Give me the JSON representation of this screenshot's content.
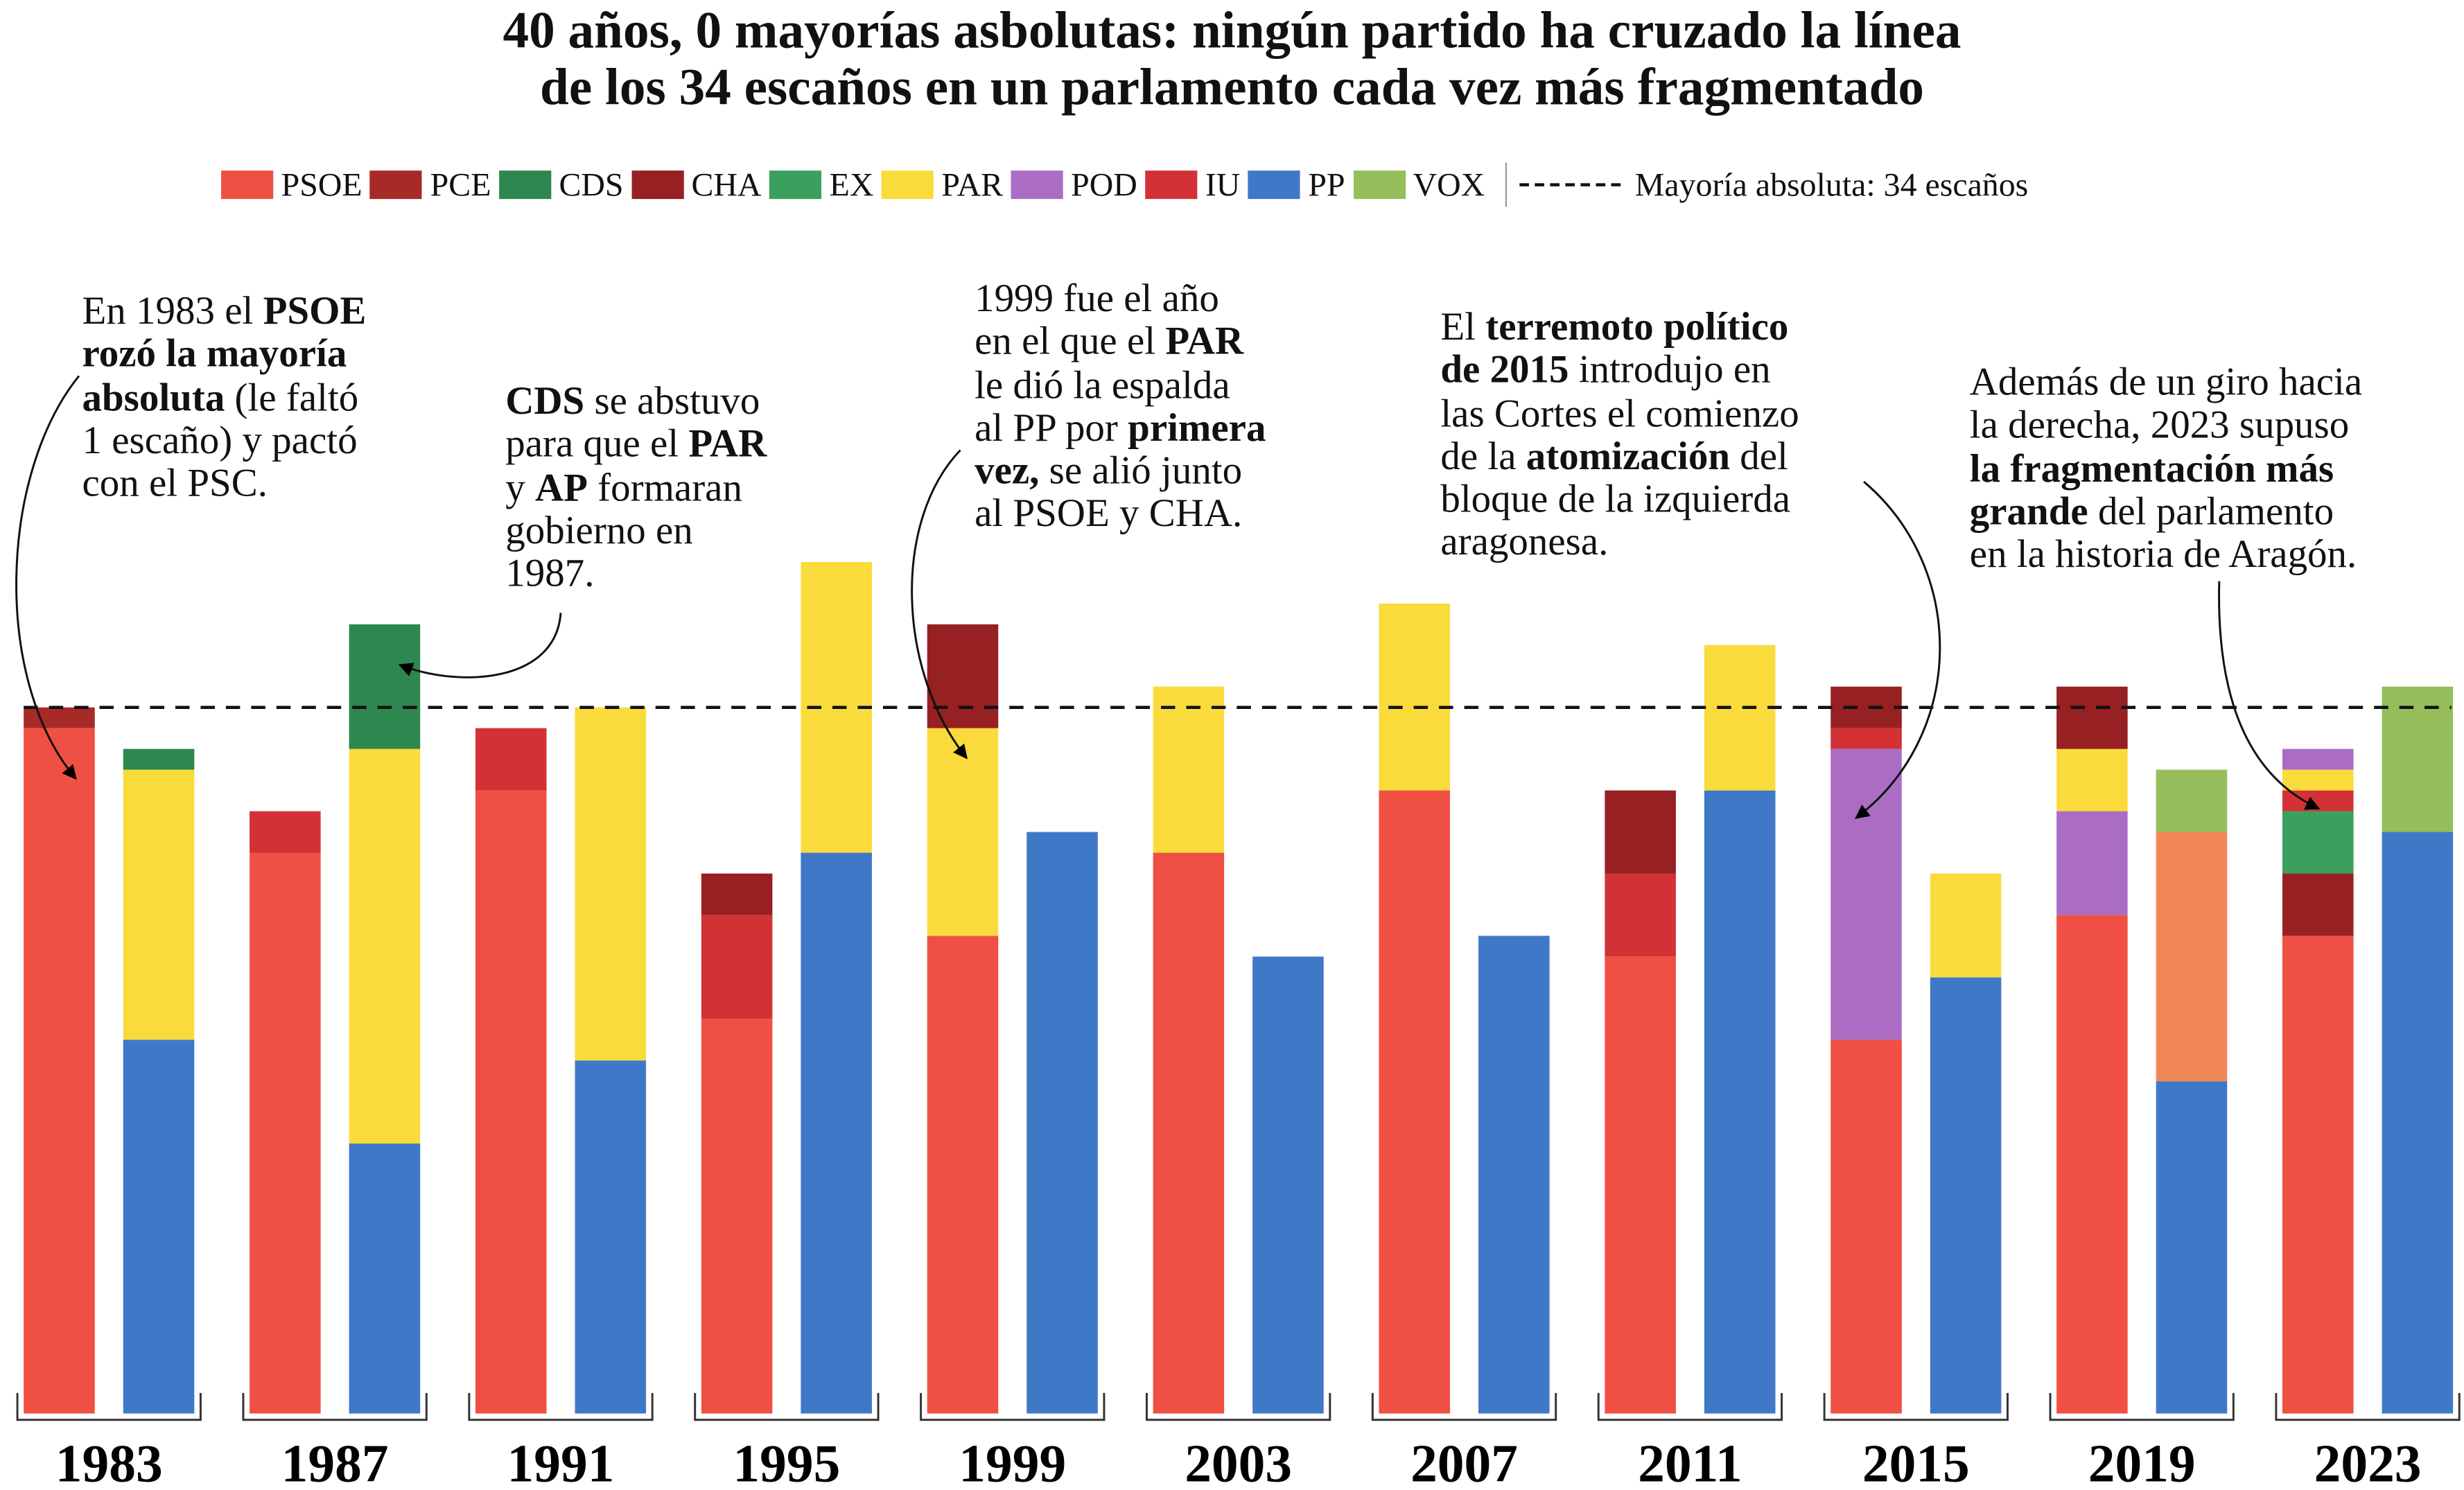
{
  "title": "40 años, 0 mayorías asbolutas: ningún partido ha cruzado la línea\nde los 34 escaños en un parlamento cada vez más fragmentado",
  "legend": {
    "items": [
      {
        "party": "PSOE",
        "label": "PSOE"
      },
      {
        "party": "PCE",
        "label": "PCE"
      },
      {
        "party": "CDS",
        "label": "CDS"
      },
      {
        "party": "CHA",
        "label": "CHA"
      },
      {
        "party": "EX",
        "label": "EX"
      },
      {
        "party": "PAR",
        "label": "PAR"
      },
      {
        "party": "POD",
        "label": "POD"
      },
      {
        "party": "IU",
        "label": "IU"
      },
      {
        "party": "PP",
        "label": "PP"
      },
      {
        "party": "VOX",
        "label": "VOX"
      }
    ],
    "majority_label": "Mayoría absoluta: 34 escaños"
  },
  "colors": {
    "PSOE": "#ef5043",
    "PCE": "#a82a27",
    "CDS": "#2e874f",
    "CHA": "#962022",
    "EX": "#3b9f5e",
    "PAR": "#fadb3c",
    "POD": "#aa6dc3",
    "IU": "#d23235",
    "PP": "#4078c8",
    "VOX": "#96be5b",
    "CS": "#f38857"
  },
  "annotations": [
    {
      "segments": [
        {
          "t": "En 1983 el "
        },
        {
          "t": "PSOE",
          "b": true
        },
        {
          "t": "\n"
        },
        {
          "t": "rozó la mayoría\nabsoluta",
          "b": true
        },
        {
          "t": " (le faltó\n1 escaño) y pactó\ncon el PSC."
        }
      ]
    },
    {
      "segments": [
        {
          "t": "CDS",
          "b": true
        },
        {
          "t": " se abstuvo\npara que el "
        },
        {
          "t": "PAR",
          "b": true
        },
        {
          "t": "\ny "
        },
        {
          "t": "AP",
          "b": true
        },
        {
          "t": " formaran\ngobierno en\n1987."
        }
      ]
    },
    {
      "segments": [
        {
          "t": "1999 fue el año\nen el que el "
        },
        {
          "t": "PAR",
          "b": true
        },
        {
          "t": "\nle dió la espalda\nal PP por "
        },
        {
          "t": "primera\nvez,",
          "b": true
        },
        {
          "t": " se alió junto\nal PSOE y CHA."
        }
      ]
    },
    {
      "segments": [
        {
          "t": "El "
        },
        {
          "t": "terremoto político\nde 2015",
          "b": true
        },
        {
          "t": " introdujo en\nlas Cortes el comienzo\nde la "
        },
        {
          "t": "atomización",
          "b": true
        },
        {
          "t": " del\nbloque de la izquierda\naragonesa."
        }
      ]
    },
    {
      "segments": [
        {
          "t": "Además de un giro hacia\nla derecha, 2023 supuso\n"
        },
        {
          "t": "la fragmentación más\ngrande",
          "b": true
        },
        {
          "t": " del parlamento\nen la historia de Aragón."
        }
      ]
    }
  ],
  "chart_data": {
    "type": "bar",
    "stacked": true,
    "unit": "escaños",
    "majority_line": 34,
    "ylim": [
      0,
      34.5
    ],
    "categories": [
      "1983",
      "1987",
      "1991",
      "1995",
      "1999",
      "2003",
      "2007",
      "2011",
      "2015",
      "2019",
      "2023"
    ],
    "groups": [
      {
        "year": "1983",
        "left": [
          [
            "PSOE",
            33
          ],
          [
            "PCE",
            1
          ]
        ],
        "right": [
          [
            "PP",
            18
          ],
          [
            "PAR",
            13
          ],
          [
            "CDS",
            1
          ]
        ]
      },
      {
        "year": "1987",
        "left": [
          [
            "PSOE",
            27
          ],
          [
            "IU",
            2
          ]
        ],
        "right": [
          [
            "PP",
            13
          ],
          [
            "PAR",
            19
          ],
          [
            "CDS",
            6
          ]
        ]
      },
      {
        "year": "1991",
        "left": [
          [
            "PSOE",
            30
          ],
          [
            "IU",
            3
          ]
        ],
        "right": [
          [
            "PP",
            17
          ],
          [
            "PAR",
            17
          ]
        ]
      },
      {
        "year": "1995",
        "left": [
          [
            "PSOE",
            19
          ],
          [
            "IU",
            5
          ],
          [
            "CHA",
            2
          ]
        ],
        "right": [
          [
            "PP",
            27
          ],
          [
            "PAR",
            14
          ]
        ]
      },
      {
        "year": "1999",
        "left": [
          [
            "PSOE",
            23
          ],
          [
            "PAR",
            10
          ],
          [
            "CHA",
            5
          ]
        ],
        "right": [
          [
            "PP",
            28
          ]
        ]
      },
      {
        "year": "2003",
        "left": [
          [
            "PSOE",
            27
          ],
          [
            "PAR",
            8
          ]
        ],
        "right": [
          [
            "PP",
            22
          ]
        ]
      },
      {
        "year": "2007",
        "left": [
          [
            "PSOE",
            30
          ],
          [
            "PAR",
            9
          ]
        ],
        "right": [
          [
            "PP",
            23
          ]
        ]
      },
      {
        "year": "2011",
        "left": [
          [
            "PSOE",
            22
          ],
          [
            "IU",
            4
          ],
          [
            "CHA",
            4
          ]
        ],
        "right": [
          [
            "PP",
            30
          ],
          [
            "PAR",
            7
          ]
        ]
      },
      {
        "year": "2015",
        "left": [
          [
            "PSOE",
            18
          ],
          [
            "POD",
            14
          ],
          [
            "IU",
            1
          ],
          [
            "CHA",
            2
          ]
        ],
        "right": [
          [
            "PP",
            21
          ],
          [
            "PAR",
            5
          ]
        ]
      },
      {
        "year": "2019",
        "left": [
          [
            "PSOE",
            24
          ],
          [
            "POD",
            5
          ],
          [
            "PAR",
            3
          ],
          [
            "CHA",
            3
          ]
        ],
        "right": [
          [
            "PP",
            16
          ],
          [
            "CS",
            12
          ],
          [
            "VOX",
            3
          ]
        ]
      },
      {
        "year": "2023",
        "left": [
          [
            "PSOE",
            23
          ],
          [
            "CHA",
            3
          ],
          [
            "EX",
            3
          ],
          [
            "IU",
            1
          ],
          [
            "PAR",
            1
          ],
          [
            "POD",
            1
          ]
        ],
        "right": [
          [
            "PP",
            28
          ],
          [
            "VOX",
            7
          ]
        ]
      }
    ]
  }
}
